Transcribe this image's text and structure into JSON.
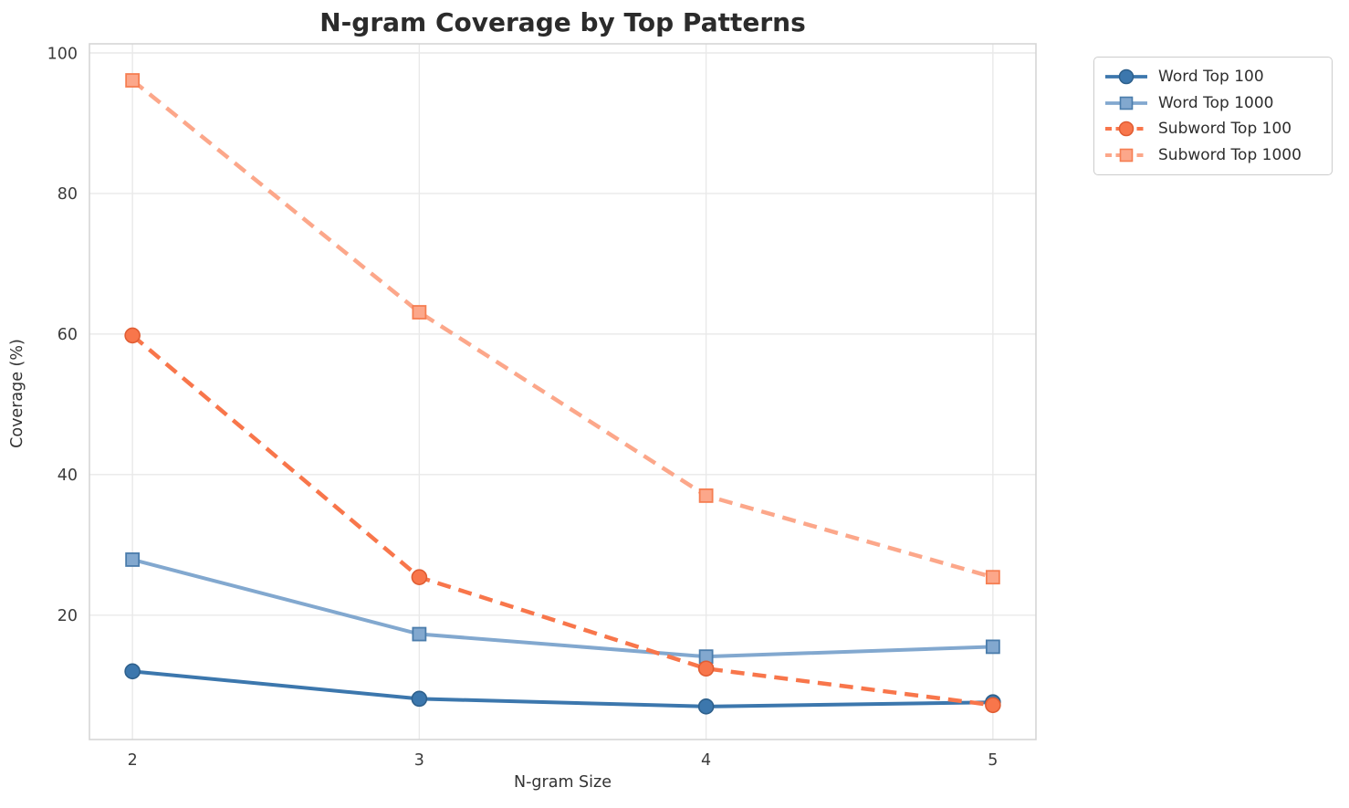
{
  "chart_data": {
    "type": "line",
    "title": "N-gram Coverage by Top Patterns",
    "xlabel": "N-gram Size",
    "ylabel": "Coverage (%)",
    "x": [
      2,
      3,
      4,
      5
    ],
    "xtick_labels": [
      "2",
      "3",
      "4",
      "5"
    ],
    "yticks": [
      20,
      40,
      60,
      80,
      100
    ],
    "xlim": [
      1.85,
      5.15
    ],
    "ylim": [
      2.3,
      101.3
    ],
    "grid": true,
    "legend_position": "outside-top-right",
    "series": [
      {
        "name": "Word Top 100",
        "values": [
          12.0,
          8.1,
          7.0,
          7.6
        ],
        "color": "#3c77ad",
        "marker_edge": "#2e608c",
        "line_style": "solid",
        "marker": "circle"
      },
      {
        "name": "Word Top 1000",
        "values": [
          27.9,
          17.3,
          14.1,
          15.5
        ],
        "color": "#82a8cf",
        "marker_edge": "#4a7cab",
        "line_style": "solid",
        "marker": "square"
      },
      {
        "name": "Subword Top 100",
        "values": [
          59.8,
          25.4,
          12.4,
          7.2
        ],
        "color": "#f8764b",
        "marker_edge": "#e05d33",
        "line_style": "dashed",
        "marker": "circle"
      },
      {
        "name": "Subword Top 1000",
        "values": [
          96.1,
          63.1,
          37.0,
          25.4
        ],
        "color": "#fca78a",
        "marker_edge": "#f57e52",
        "line_style": "dashed",
        "marker": "square"
      }
    ],
    "style": {
      "grid_color": "#e9e9e9",
      "spine_color": "#d6d6d6",
      "tick_label_color": "#3c3c3c",
      "title_color": "#2b2b2b",
      "axis_label_color": "#333333"
    }
  }
}
